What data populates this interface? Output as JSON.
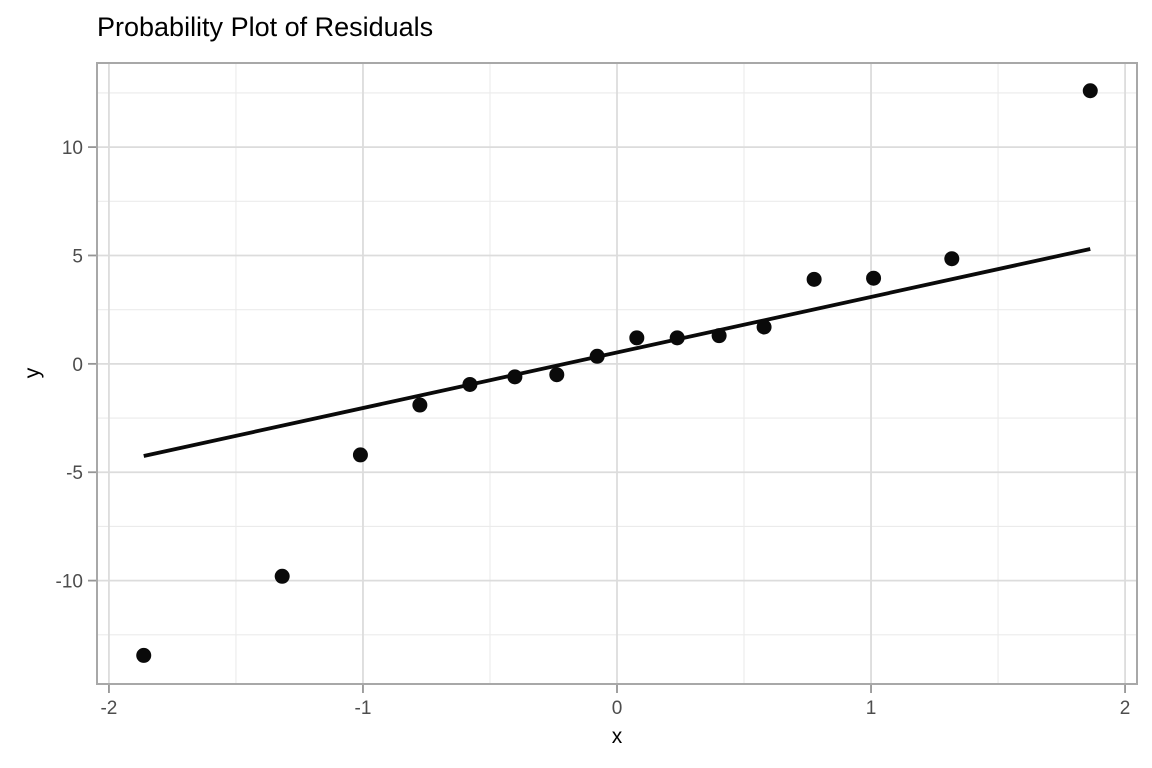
{
  "chart_data": {
    "type": "scatter",
    "title": "Probability Plot of Residuals",
    "xlabel": "x",
    "ylabel": "y",
    "xlim": [
      -2.047,
      2.047
    ],
    "ylim": [
      -14.77,
      13.88
    ],
    "x_major_ticks": [
      -2,
      -1,
      0,
      1,
      2
    ],
    "x_minor_ticks": [
      -1.5,
      -0.5,
      0.5,
      1.5
    ],
    "y_major_ticks": [
      -10,
      -5,
      0,
      5,
      10
    ],
    "y_minor_ticks": [
      -12.5,
      -7.5,
      -2.5,
      2.5,
      7.5,
      12.5
    ],
    "grid": "major+minor",
    "legend": "none",
    "points": [
      [
        -1.863,
        -13.45
      ],
      [
        -1.318,
        -9.8
      ],
      [
        -1.01,
        -4.2
      ],
      [
        -0.776,
        -1.9
      ],
      [
        -0.579,
        -0.95
      ],
      [
        -0.402,
        -0.6
      ],
      [
        -0.237,
        -0.5
      ],
      [
        -0.078,
        0.35
      ],
      [
        0.078,
        1.2
      ],
      [
        0.237,
        1.2
      ],
      [
        0.402,
        1.3
      ],
      [
        0.579,
        1.7
      ],
      [
        0.776,
        3.9
      ],
      [
        1.01,
        3.95
      ],
      [
        1.318,
        4.85
      ],
      [
        1.863,
        12.6
      ]
    ],
    "reference_line": {
      "x1": -1.863,
      "y1": -4.25,
      "x2": 1.863,
      "y2": 5.3
    },
    "point_radius": 7.5,
    "line_width": 3.8,
    "colors": {
      "point": "#0a0a0a",
      "line": "#0a0a0a",
      "grid_major": "#dcdcdc",
      "grid_minor": "#ebebeb",
      "panel_border": "#a8a8a8",
      "tick_mark": "#969696",
      "tick_label": "#4d4d4d",
      "axis_title": "#000000",
      "title": "#000000",
      "panel_bg": "#ffffff"
    }
  }
}
